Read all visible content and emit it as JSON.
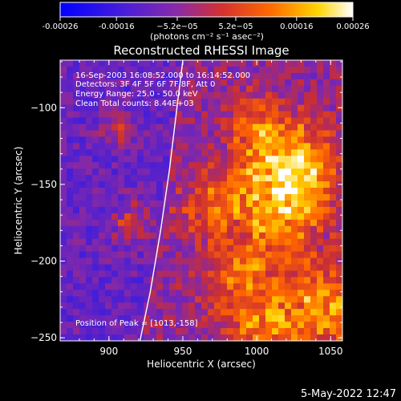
{
  "chart_data": {
    "type": "heatmap",
    "title": "Reconstructed RHESSI Image",
    "xlabel": "Heliocentric X (arcsec)",
    "ylabel": "Heliocentric Y (arcsec)",
    "xlim": [
      867,
      1058
    ],
    "ylim": [
      -252,
      -69
    ],
    "x_ticks": [
      900,
      950,
      1000,
      1050
    ],
    "y_ticks": [
      -100,
      -150,
      -200,
      -250
    ],
    "colorbar": {
      "range": [
        -0.00026,
        0.00026
      ],
      "ticks": [
        -0.00026,
        -0.00016,
        -5.2e-05,
        5.2e-05,
        0.00016,
        0.00026
      ],
      "tick_labels": [
        "-0.00026",
        "-0.00016",
        "−5.2e−05",
        "5.2e−05",
        "0.00016",
        "0.00026"
      ],
      "units_label": "(photons cm⁻² s⁻¹ asec⁻²)",
      "colors": [
        "#0000ff",
        "#5a1fd0",
        "#9a2aa8",
        "#d03030",
        "#ff6a00",
        "#ffd500",
        "#ffffff"
      ]
    },
    "annotations": {
      "time_range": "16-Sep-2003 16:08:52.000 to 16:14:52.000",
      "detectors": "Detectors: 3F 4F 5F 6F 7F 8F, Att 0",
      "energy_range": "Energy Range: 25.0 - 50.0 keV",
      "clean": "Clean    Total counts: 8.44E+03",
      "peak": "Position of Peak = [1013,-158]"
    },
    "limb_curve": {
      "x": [
        950,
        946,
        941,
        935,
        928,
        921
      ],
      "y": [
        -69,
        -100,
        -140,
        -180,
        -220,
        -252
      ]
    },
    "note": "Image pixels are a noisy map with bright emission concentrated to the right of the limb, peaking near [1013,-158]."
  },
  "footer": {
    "timestamp": "5-May-2022 12:47"
  }
}
